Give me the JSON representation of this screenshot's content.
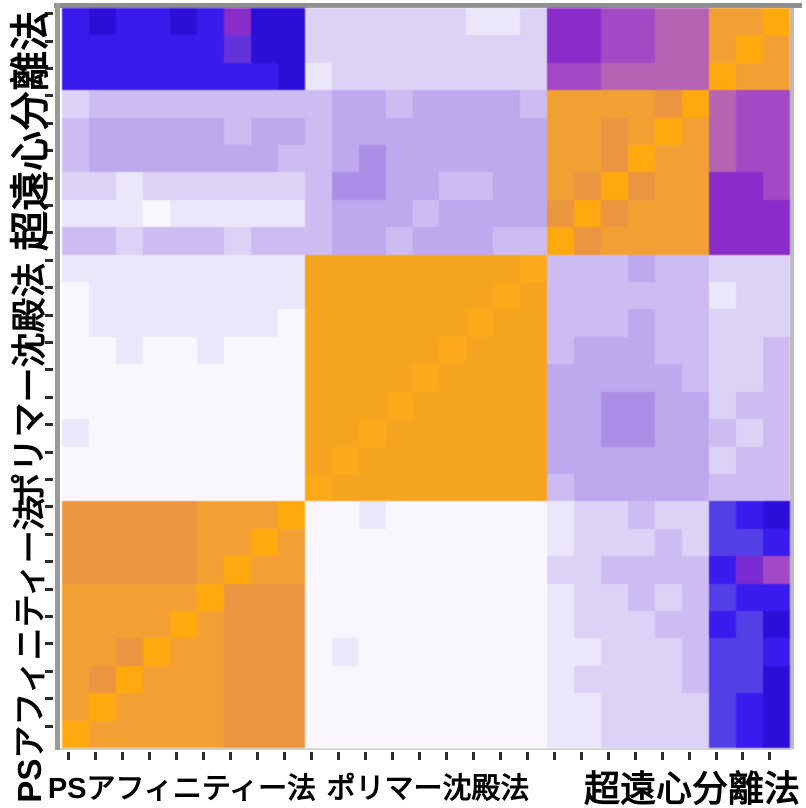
{
  "figure": {
    "background": "#ffffff",
    "spine_colors": {
      "top": "#8f8f8f",
      "left": "#9a9a9a",
      "right": "#bcbcbc",
      "bottom": "#d2d2d2"
    },
    "tick_color": "#2b2b2b"
  },
  "chart_data": {
    "type": "heatmap",
    "title": "",
    "xlabel": "",
    "ylabel": "",
    "n_rows": 27,
    "n_cols": 27,
    "x_tick_count": 27,
    "y_tick_count": 27,
    "grid": false,
    "legend": "none (no colorbar shown)",
    "x_groups": [
      {
        "label": "PSアフィニティー法",
        "count": 9
      },
      {
        "label": "ポリマー沈殿法",
        "count": 9
      },
      {
        "label": "超遠心分離法",
        "count": 9
      }
    ],
    "y_groups_top_to_bottom": [
      {
        "label": "超遠心分離法",
        "count": 9
      },
      {
        "label": "ポリマー沈殿法",
        "count": 9
      },
      {
        "label": "PSアフィニティー法",
        "count": 9
      }
    ],
    "palette": {
      "B4": "#2B0FD9",
      "B3": "#3A1BEE",
      "B2": "#5240E6",
      "BP": "#6333D9",
      "P2": "#7B2BD2",
      "V3": "#8A2CC9",
      "V2": "#A449C5",
      "M2": "#B763B3",
      "L4": "#AB8FE6",
      "L3": "#BEA8EE",
      "L2": "#CDBCF2",
      "L1": "#DCD2F6",
      "L0": "#ECE6FA",
      "W": "#F9F7FD",
      "O2": "#EC9540",
      "O3": "#F2A033",
      "O4": "#FFA90F",
      "OC": "#F5A41F",
      "OD": "#FBA918"
    },
    "matrix": [
      "B3 B4 B3 B3 B4 B3 V3 B4 B4 L1 L1 L1 L1 L1 L1 L0 L0 L1 V3 V3 V2 V2 M2 M2 O3 O3 O4",
      "B3 B3 B3 B3 B3 B3 BP B4 B4 L1 L1 L1 L1 L1 L1 L1 L1 L1 V3 V3 V2 V2 M2 M2 O3 O4 O3",
      "B3 B3 B3 B3 B3 B3 B3 B3 B4 L0 L1 L1 L1 L1 L1 L1 L1 L1 V2 V2 M2 M2 M2 M2 O4 O3 O3",
      "L1 L2 L2 L2 L2 L2 L2 L2 L2 L2 L3 L3 L2 L3 L3 L3 L3 L2 O3 O3 O3 O3 O2 O4 M2 V2 V2",
      "L2 L3 L3 L3 L3 L3 L2 L3 L3 L2 L3 L3 L3 L3 L3 L3 L3 L3 O3 O3 O2 O3 O4 O3 M2 V2 V2",
      "L2 L3 L3 L3 L3 L3 L3 L3 L2 L2 L3 L4 L3 L3 L3 L3 L3 L3 O3 O3 O2 O4 O3 O3 M2 V2 V2",
      "L1 L1 L0 L1 L1 L1 L1 L1 L1 L2 L4 L4 L3 L3 L2 L2 L3 L3 O3 O2 O4 O2 O3 O3 V3 V3 V2",
      "L0 L0 L0 W L0 L0 L0 L0 L0 L2 L3 L3 L3 L2 L3 L3 L3 L3 O2 O4 O2 O3 O3 O3 V3 V3 V3",
      "L2 L2 L1 L2 L2 L2 L1 L2 L2 L2 L3 L3 L2 L3 L3 L3 L2 L2 O4 O2 O3 O3 O3 O3 V3 V3 V3",
      "L0 L0 L0 L0 L0 L0 L0 L0 L0 OC OC OC OC OC OC OC OC OD L2 L2 L2 L3 L2 L2 L1 L1 L1",
      "W L0 L0 L0 L0 L0 L0 L0 L0 OC OC OC OC OC OC OC OD OC L2 L2 L2 L2 L2 L2 L0 L1 L1",
      "W L0 L0 L0 L0 L0 L0 L0 W OC OC OC OC OC OC OD OC OC L2 L2 L2 L3 L2 L2 L1 L1 L1",
      "W W L0 W W L0 W W W OC OC OC OC OC OD OC OC OC L2 L3 L3 L3 L2 L2 L1 L1 L2",
      "W W W W W W W W W OC OC OC OC OD OC OC OC OC L3 L3 L3 L3 L3 L2 L1 L1 L2",
      "W W W W W W W W W OC OC OC OD OC OC OC OC OC L3 L3 L4 L4 L3 L3 L1 L2 L2",
      "L0 W W W W W W W W OC OC OD OC OC OC OC OC OC L3 L3 L4 L4 L3 L3 L2 L1 L2",
      "W W W W W W W W W OC OD OC OC OC OC OC OC OC L3 L3 L3 L3 L3 L3 L1 L2 L2",
      "W W W W W W W W W OD OC OC OC OC OC OC OC OC L2 L3 L3 L3 L3 L3 L2 L2 L2",
      "O2 O2 O2 O2 O2 O3 O3 O3 O4 W W L0 W W W W W W L0 L1 L1 L2 L1 L1 B2 B3 B4",
      "O2 O2 O2 O2 O2 O3 O3 O4 O3 W W W W W W W W W L0 L1 L1 L1 L2 L1 B2 B2 B3",
      "O2 O2 O2 O2 O2 O3 O4 O3 O3 W W W W W W W W W L1 L1 L2 L2 L2 L2 B3 P2 V2",
      "O3 O3 O3 O3 O3 O4 O2 O2 O2 W W W W W W W W W L0 L1 L1 L2 L1 L2 B2 B3 B3",
      "O3 O3 O3 O3 O4 O3 O2 O2 O2 W W W W W W W W W L0 L1 L1 L1 L2 L2 B3 B2 B4",
      "O3 O3 O2 O4 O3 O3 O2 O2 O2 W L0 W W W W W W W L0 L0 L1 L1 L1 L2 B2 B2 B3",
      "O3 O2 O4 O3 O3 O3 O2 O2 O2 W W W W W W W W W L0 L1 L1 L1 L1 L2 B2 B2 B4",
      "O3 O4 O3 O3 O3 O3 O2 O2 O2 W W W W W W W W W L0 L0 L1 L1 L1 L1 B2 B3 B4",
      "O4 O3 O3 O3 O3 O3 O2 O2 O2 W W W W W W W W W L0 L0 L1 L1 L1 L1 B2 B3 B4"
    ]
  }
}
